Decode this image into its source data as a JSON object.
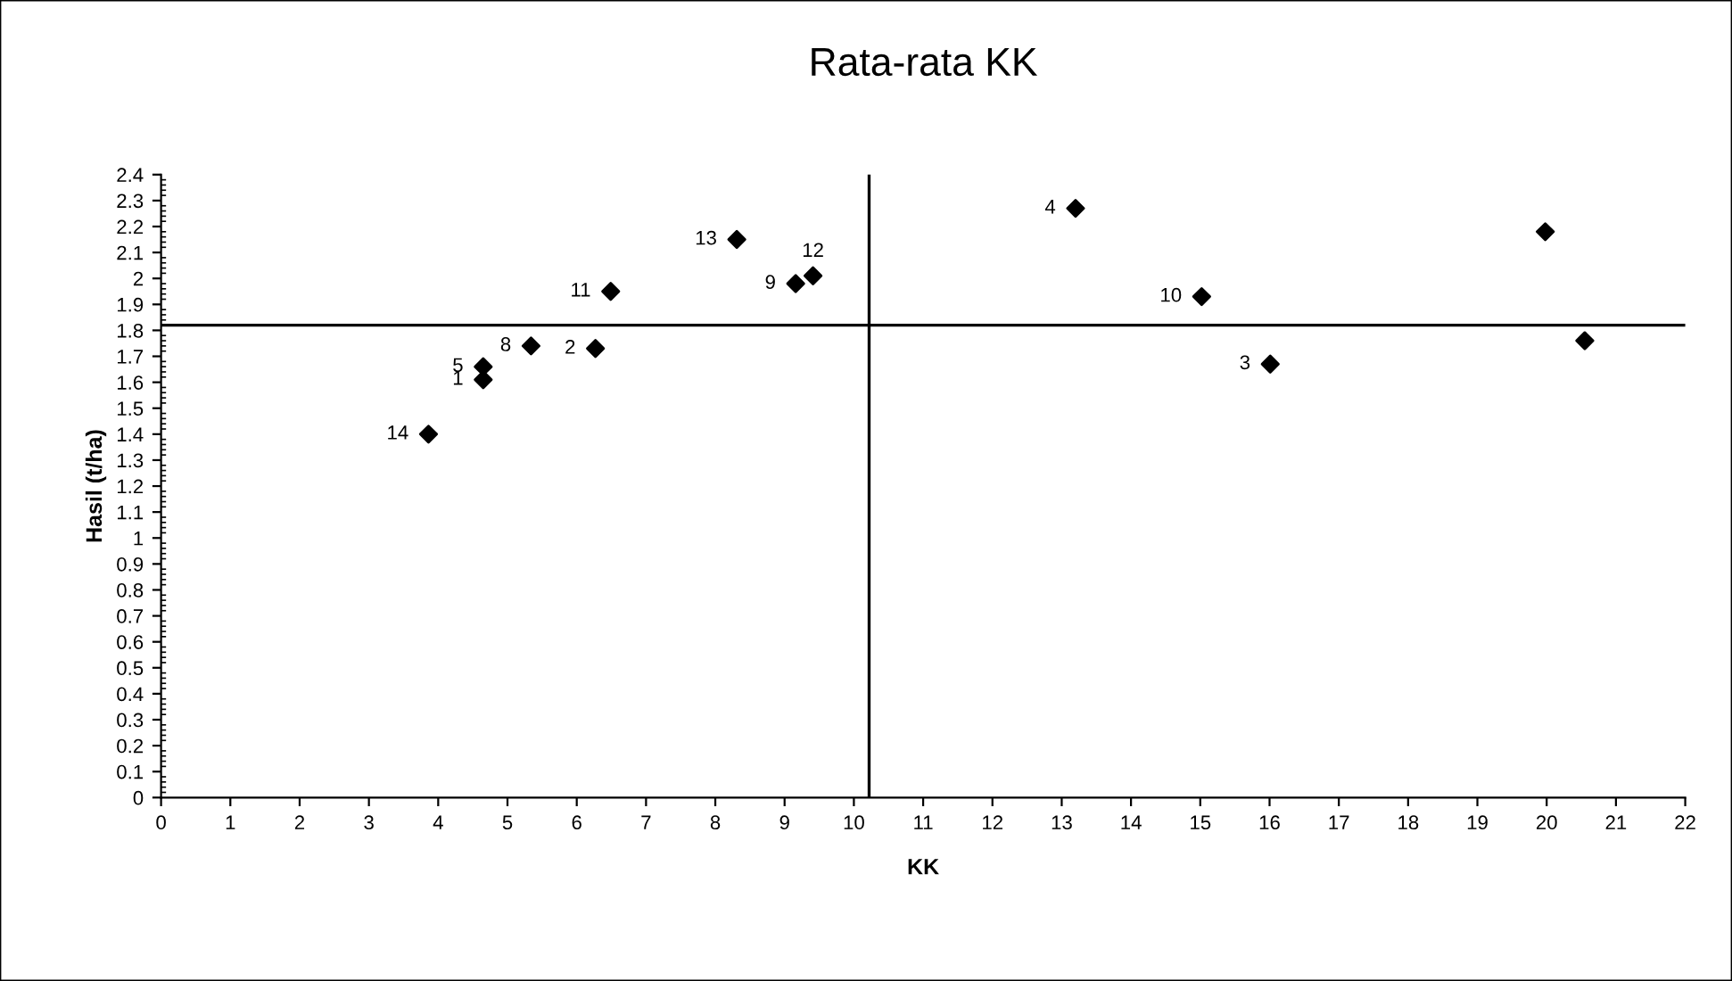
{
  "chart_data": {
    "type": "scatter",
    "title": "Rata-rata KK",
    "xlabel": "KK",
    "ylabel": "Hasil (t/ha)",
    "x": [
      3.86,
      4.65,
      4.65,
      5.34,
      6.27,
      6.49,
      8.31,
      9.16,
      9.41,
      13.2,
      15.02,
      16.01,
      19.98,
      20.55
    ],
    "values": [
      1.4,
      1.61,
      1.66,
      1.74,
      1.73,
      1.95,
      2.15,
      1.98,
      2.01,
      2.27,
      1.93,
      1.67,
      2.18,
      1.76
    ],
    "color": "#000000",
    "marker": "diamond",
    "grid": false,
    "legend": false,
    "xlim": [
      0,
      22
    ],
    "xticks": [
      0,
      1,
      2,
      3,
      4,
      5,
      6,
      7,
      8,
      9,
      10,
      11,
      12,
      13,
      14,
      15,
      16,
      17,
      18,
      19,
      20,
      21,
      22
    ],
    "ylim": [
      0,
      2.4
    ],
    "yticks": [
      0,
      0.1,
      0.2,
      0.3,
      0.4,
      0.5,
      0.6,
      0.7,
      0.8,
      0.9,
      1,
      1.1,
      1.2,
      1.3,
      1.4,
      1.5,
      1.6,
      1.7,
      1.8,
      1.9,
      2,
      2.1,
      2.2,
      2.3,
      2.4
    ],
    "ref_lines": [
      {
        "axis": "x",
        "value": 10.22,
        "color": "#000000"
      },
      {
        "axis": "y",
        "value": 1.82,
        "color": "#000000"
      }
    ],
    "annotations": [
      {
        "text": "14",
        "x": 3.86,
        "y": 1.4
      },
      {
        "text": "1",
        "x": 4.65,
        "y": 1.61
      },
      {
        "text": "5",
        "x": 4.65,
        "y": 1.66
      },
      {
        "text": "8",
        "x": 5.34,
        "y": 1.74
      },
      {
        "text": "2",
        "x": 6.27,
        "y": 1.73
      },
      {
        "text": "11",
        "x": 6.49,
        "y": 1.95
      },
      {
        "text": "13",
        "x": 8.31,
        "y": 2.15
      },
      {
        "text": "9",
        "x": 9.16,
        "y": 1.98
      },
      {
        "text": "12",
        "x": 9.41,
        "y": 2.01
      },
      {
        "text": "4",
        "x": 13.2,
        "y": 2.27
      },
      {
        "text": "10",
        "x": 15.02,
        "y": 1.93
      },
      {
        "text": "3",
        "x": 16.01,
        "y": 1.67
      }
    ]
  }
}
